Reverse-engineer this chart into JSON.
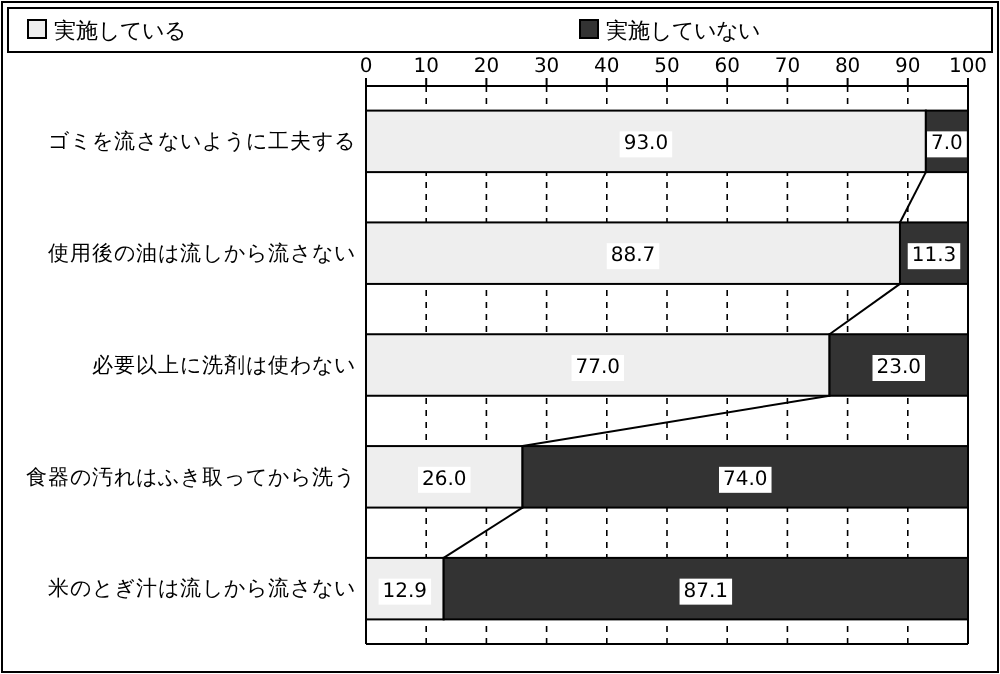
{
  "chart_data": {
    "type": "bar",
    "orientation": "horizontal",
    "stacked": true,
    "categories": [
      "ゴミを流さないように工夫する",
      "使用後の油は流しから流さない",
      "必要以上に洗剤は使わない",
      "食器の汚れはふき取ってから洗う",
      "米のとぎ汁は流しから流さない"
    ],
    "series": [
      {
        "name": "実施している",
        "color": "#eeeeee",
        "values": [
          93.0,
          88.7,
          77.0,
          26.0,
          12.9
        ],
        "value_labels": [
          "93.0",
          "88.7",
          "77.0",
          "26.0",
          "12.9"
        ]
      },
      {
        "name": "実施していない",
        "color": "#333333",
        "values": [
          7.0,
          11.3,
          23.0,
          74.0,
          87.1
        ],
        "value_labels": [
          "7.0",
          "11.3",
          "23.0",
          "74.0",
          "87.1"
        ]
      }
    ],
    "xlim": [
      0,
      100
    ],
    "xticks": [
      0,
      10,
      20,
      30,
      40,
      50,
      60,
      70,
      80,
      90,
      100
    ],
    "grid": "x",
    "legend": "top"
  }
}
